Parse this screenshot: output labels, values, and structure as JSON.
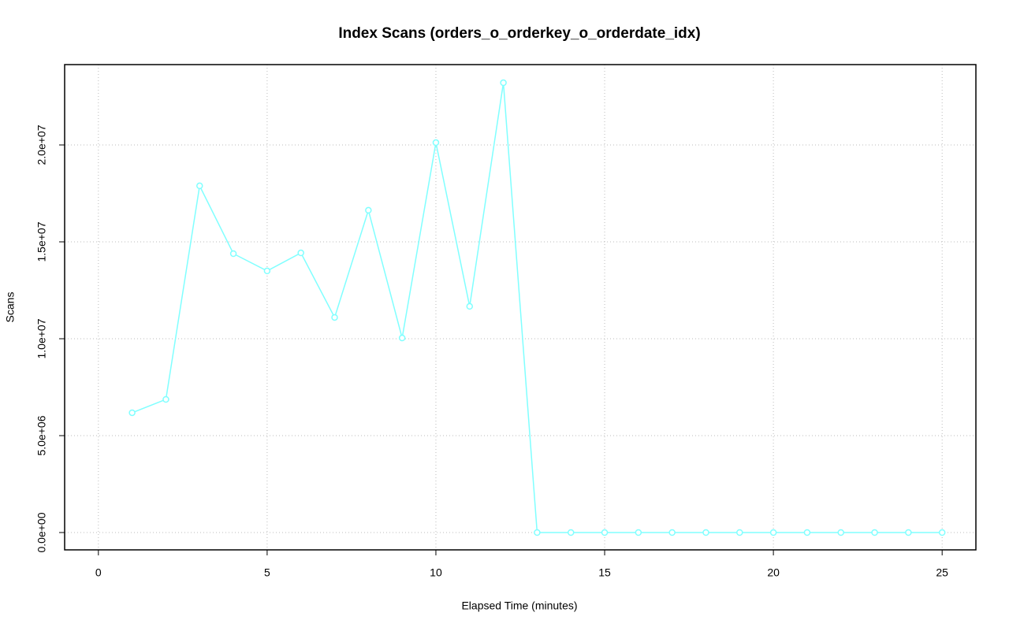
{
  "chart_data": {
    "type": "line",
    "title": "Index Scans (orders_o_orderkey_o_orderdate_idx)",
    "x_label": "Elapsed Time (minutes)",
    "y_label": "Scans",
    "x": [
      1,
      2,
      3,
      4,
      5,
      6,
      7,
      8,
      9,
      10,
      11,
      12,
      13,
      14,
      15,
      16,
      17,
      18,
      19,
      20,
      21,
      22,
      23,
      24,
      25
    ],
    "series": [
      {
        "color": "#80ffff",
        "values": [
          6180000,
          6870000,
          17890000,
          14390000,
          13500000,
          14430000,
          11100000,
          16630000,
          10040000,
          20120000,
          11670000,
          23210000,
          0,
          0,
          0,
          0,
          0,
          0,
          0,
          0,
          0,
          0,
          0,
          0,
          0
        ]
      }
    ],
    "xlim": [
      -1,
      26
    ],
    "ylim": [
      -894000,
      24146000
    ],
    "xticks": [
      0,
      5,
      10,
      15,
      20,
      25
    ],
    "yticks": [
      {
        "value": 0,
        "label": "0.0e+00"
      },
      {
        "value": 5000000,
        "label": "5.0e+06"
      },
      {
        "value": 10000000,
        "label": "1.0e+07"
      },
      {
        "value": 15000000,
        "label": "1.5e+07"
      },
      {
        "value": 20000000,
        "label": "2.0e+07"
      }
    ],
    "grid": true
  }
}
